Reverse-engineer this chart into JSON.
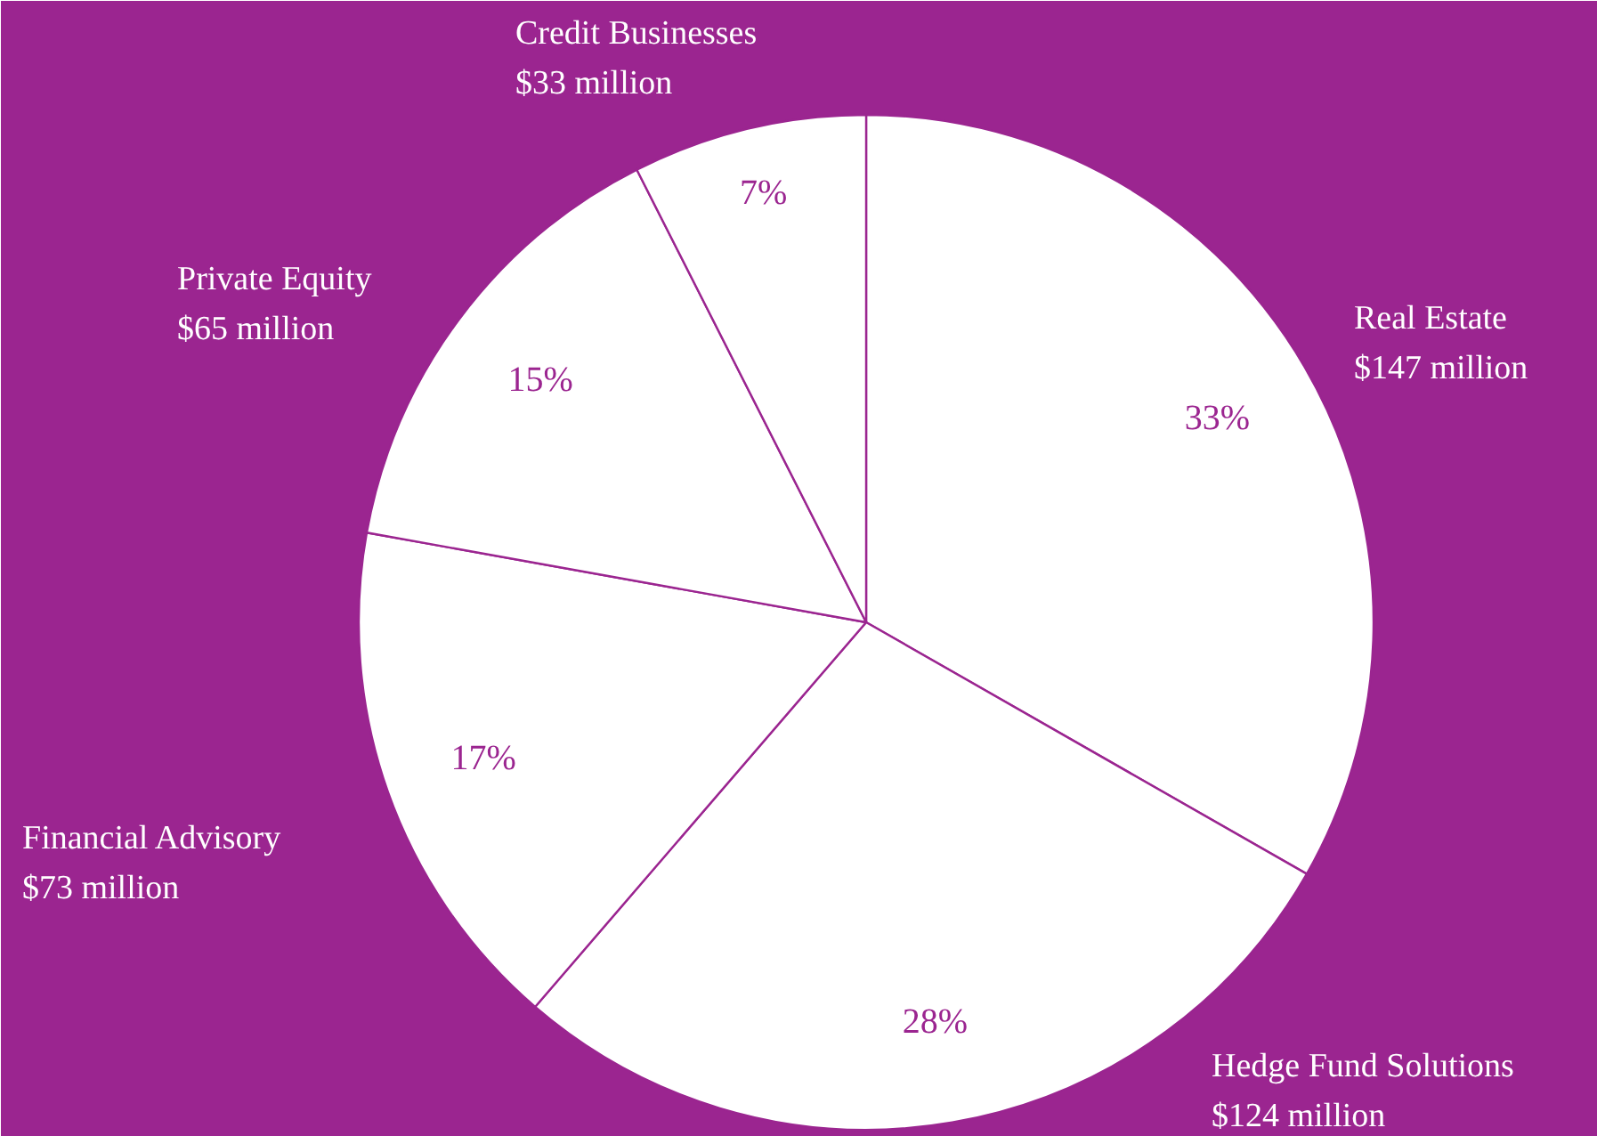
{
  "chart_data": {
    "type": "pie",
    "categories": [
      "Real Estate",
      "Hedge Fund Solutions",
      "Financial Advisory",
      "Private Equity",
      "Credit Businesses"
    ],
    "values": [
      147,
      124,
      73,
      65,
      33
    ],
    "colors": [
      "#ffffff",
      "#ffffff",
      "#ffffff",
      "#ffffff",
      "#ffffff"
    ],
    "value_labels": [
      "$147 million",
      "$124 million",
      "$73 million",
      "$65 million",
      "$33 million"
    ],
    "annotations": [
      "33%",
      "28%",
      "17%",
      "15%",
      "7%"
    ]
  }
}
